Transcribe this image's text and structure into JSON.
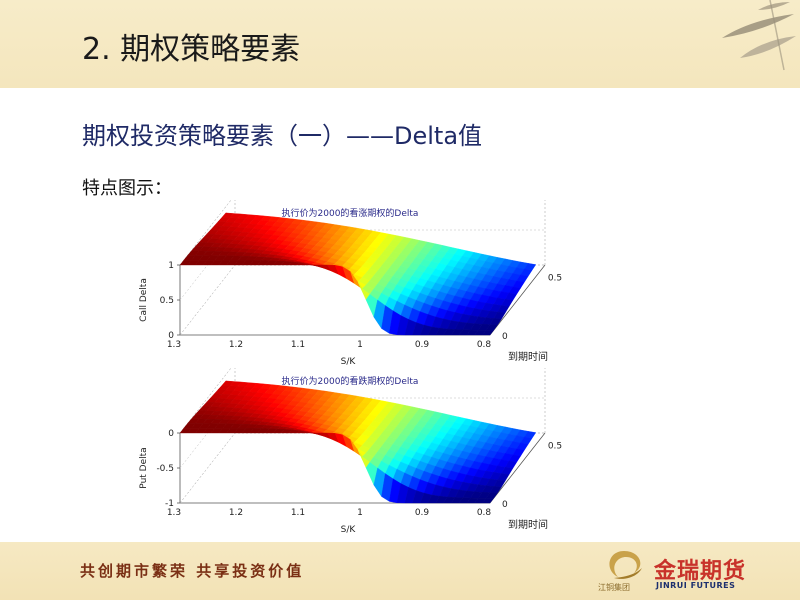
{
  "header": {
    "title": "2. 期权策略要素"
  },
  "content": {
    "subtitle": "期权投资策略要素（一）——Delta值",
    "intro": "特点图示："
  },
  "chart_data": [
    {
      "type": "surface",
      "title": "执行价为2000的看涨期权的Delta",
      "xlabel": "S/K",
      "ylabel": "到期时间",
      "zlabel": "Call Delta",
      "x_ticks": [
        "1.3",
        "1.2",
        "1.1",
        "1",
        "0.9",
        "0.8"
      ],
      "y_ticks": [
        "0",
        "0.5"
      ],
      "z_ticks": [
        "0",
        "0.5",
        "1"
      ],
      "xlim": [
        0.8,
        1.3
      ],
      "ylim": [
        0,
        0.6
      ],
      "zlim": [
        0,
        1
      ],
      "colormap": "jet"
    },
    {
      "type": "surface",
      "title": "执行价为2000的看跌期权的Delta",
      "xlabel": "S/K",
      "ylabel": "到期时间",
      "zlabel": "Put Delta",
      "x_ticks": [
        "1.3",
        "1.2",
        "1.1",
        "1",
        "0.9",
        "0.8"
      ],
      "y_ticks": [
        "0",
        "0.5"
      ],
      "z_ticks": [
        "-1",
        "-0.5",
        "0"
      ],
      "xlim": [
        0.8,
        1.3
      ],
      "ylim": [
        0,
        0.6
      ],
      "zlim": [
        -1,
        0
      ],
      "colormap": "jet"
    }
  ],
  "footer": {
    "slogan": "共创期市繁荣  共享投资价值",
    "brand_name": "金瑞期货",
    "brand_en": "JINRUI FUTURES",
    "brand_group": "江铜集团"
  },
  "colors": {
    "header_bg": "#f6eac6",
    "subtitle": "#1f2a66",
    "slogan": "#7a2f14",
    "brand_red": "#c8322a",
    "brand_blue": "#1d2f6e"
  }
}
